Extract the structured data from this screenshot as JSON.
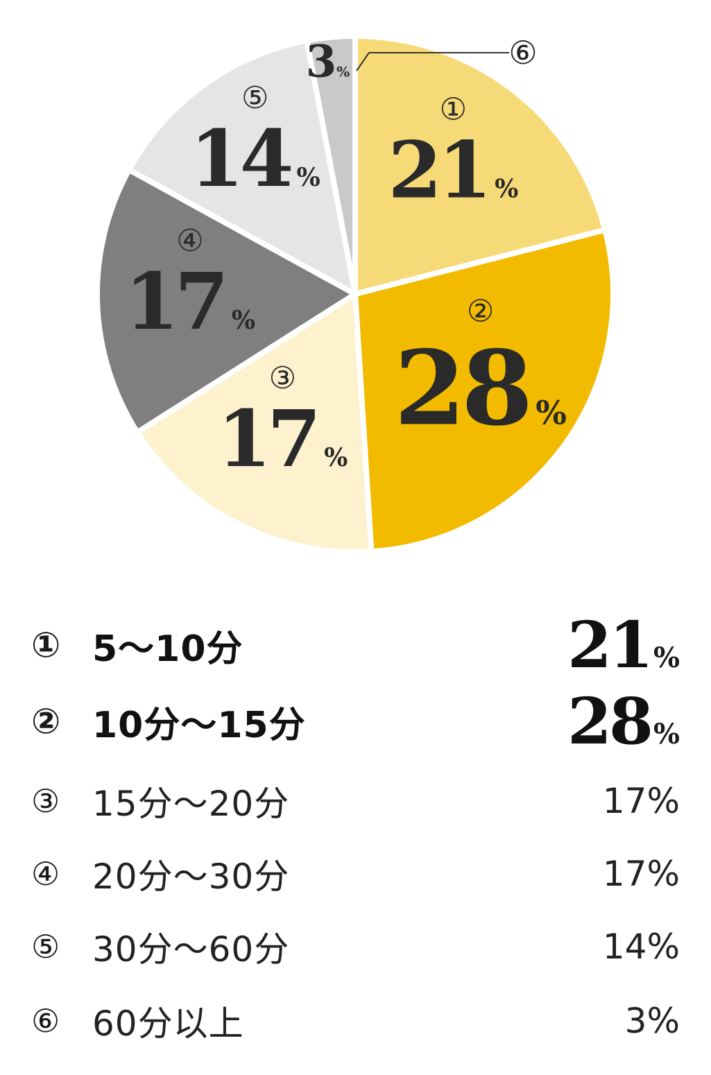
{
  "chart_data": {
    "type": "pie",
    "slices": [
      {
        "marker": "①",
        "label": "5〜10分",
        "value": 21,
        "color": "#F7DA78"
      },
      {
        "marker": "②",
        "label": "10分〜15分",
        "value": 28,
        "color": "#F2BB00"
      },
      {
        "marker": "③",
        "label": "15分〜20分",
        "value": 17,
        "color": "#FDF1CE"
      },
      {
        "marker": "④",
        "label": "20分〜30分",
        "value": 17,
        "color": "#7F7F7F"
      },
      {
        "marker": "⑤",
        "label": "30分〜60分",
        "value": 14,
        "color": "#E5E5E5"
      },
      {
        "marker": "⑥",
        "label": "60分以上",
        "value": 3,
        "color": "#C9C9C9"
      }
    ],
    "unit": "%"
  },
  "legend": [
    {
      "marker": "①",
      "label": "5〜10分",
      "pct": "21",
      "unit": "%"
    },
    {
      "marker": "②",
      "label": "10分〜15分",
      "pct": "28",
      "unit": "%"
    },
    {
      "marker": "③",
      "label": "15分〜20分",
      "pct": "17%"
    },
    {
      "marker": "④",
      "label": "20分〜30分",
      "pct": "17%"
    },
    {
      "marker": "⑤",
      "label": "30分〜60分",
      "pct": "14%"
    },
    {
      "marker": "⑥",
      "label": "60分以上",
      "pct": "3%"
    }
  ]
}
